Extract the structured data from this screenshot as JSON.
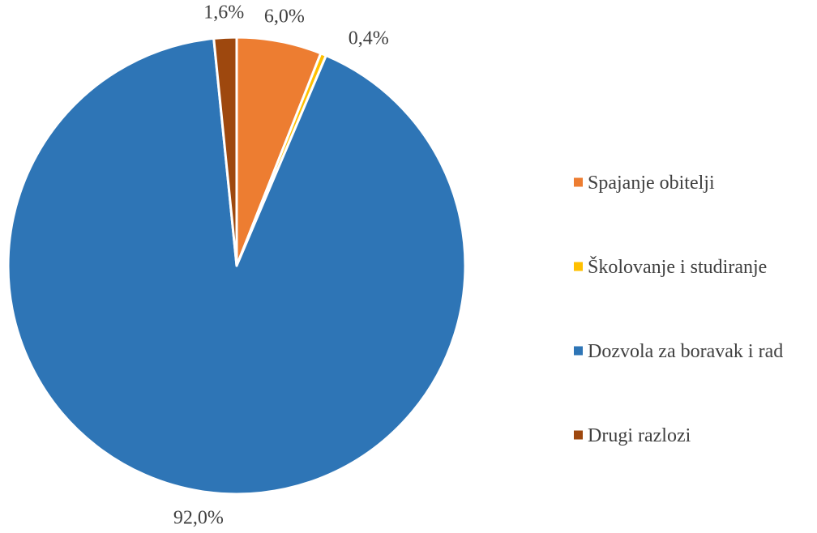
{
  "chart_data": {
    "type": "pie",
    "title": "",
    "legend_position": "right",
    "slices": [
      {
        "name": "Spajanje obitelji",
        "value": 6.0,
        "label": "6,0%",
        "color": "#ED7D31"
      },
      {
        "name": "Školovanje i studiranje",
        "value": 0.4,
        "label": "0,4%",
        "color": "#FFC000"
      },
      {
        "name": "Dozvola za boravak i rad",
        "value": 92.0,
        "label": "92,0%",
        "color": "#2E75B6"
      },
      {
        "name": "Drugi razlozi",
        "value": 1.6,
        "label": "1,6%",
        "color": "#9E480E"
      }
    ]
  }
}
